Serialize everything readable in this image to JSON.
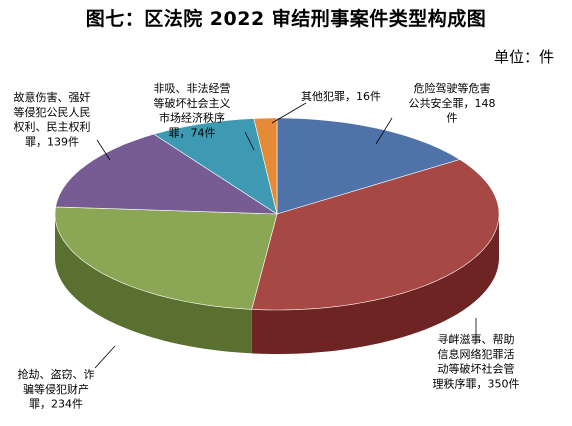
{
  "chart_data": {
    "type": "pie",
    "title": "图七：区法院 2022 审结刑事案件类型构成图",
    "unit": "单位：件",
    "slices": [
      {
        "value": 148,
        "color": "#4F72A8",
        "side": "#2F4A74",
        "label_lines": [
          "危险驾驶等危害",
          "公共安全罪，148",
          "件"
        ]
      },
      {
        "value": 350,
        "color": "#A84844",
        "side": "#6E2422",
        "label_lines": [
          "寻衅滋事、帮助",
          "信息网络犯罪活",
          "动等破坏社会管",
          "理秩序罪，350件"
        ]
      },
      {
        "value": 234,
        "color": "#8BA654",
        "side": "#5A7030",
        "label_lines": [
          "抢劫、盗窃、诈",
          "骗等侵犯财产",
          "罪，234件"
        ]
      },
      {
        "value": 139,
        "color": "#775B93",
        "side": "#4E3A62",
        "label_lines": [
          "故意伤害、强奸",
          "等侵犯公民人民",
          "权利、民主权利",
          "罪，139件"
        ]
      },
      {
        "value": 74,
        "color": "#3D9AB2",
        "side": "#236072",
        "label_lines": [
          "非吸、非法经营",
          "等破坏社会主义",
          "市场经济秩序",
          "罪，74件"
        ]
      },
      {
        "value": 16,
        "color": "#E58A36",
        "side": "#A05A18",
        "label_lines": [
          "其他犯罪，16件"
        ]
      }
    ]
  }
}
